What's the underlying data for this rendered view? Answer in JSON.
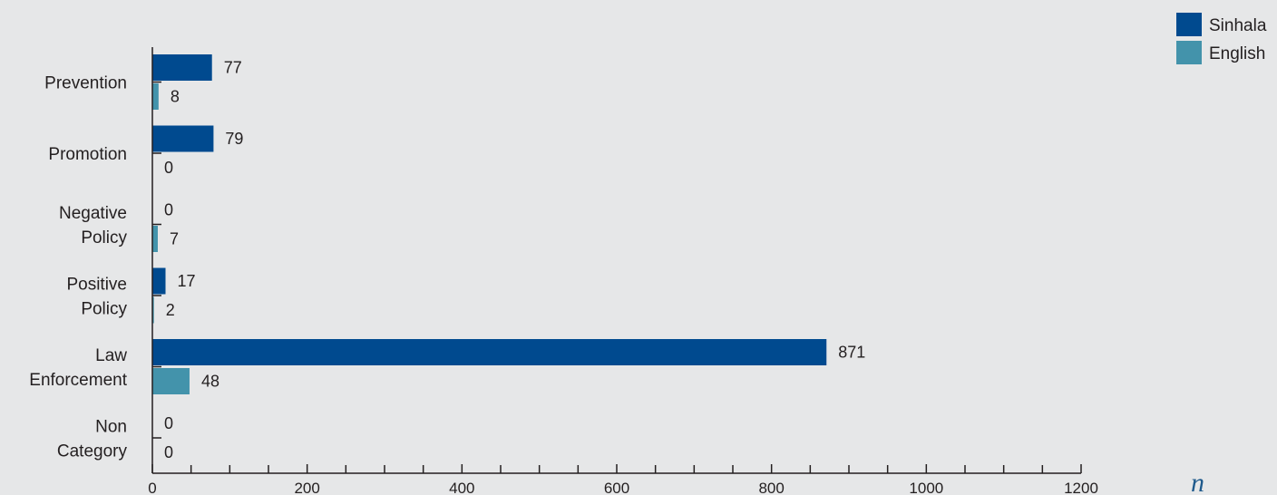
{
  "chart_data": {
    "type": "bar",
    "orientation": "horizontal",
    "categories": [
      [
        "Prevention"
      ],
      [
        "Promotion"
      ],
      [
        "Negative",
        "Policy"
      ],
      [
        "Positive",
        "Policy"
      ],
      [
        "Law",
        "Enforcement"
      ],
      [
        "Non",
        "Category"
      ]
    ],
    "series": [
      {
        "name": "Sinhala",
        "color": "#004a8f",
        "values": [
          77,
          79,
          0,
          17,
          871,
          0
        ]
      },
      {
        "name": "English",
        "color": "#4393ab",
        "values": [
          8,
          0,
          7,
          2,
          48,
          0
        ]
      }
    ],
    "x_ticks": [
      0,
      200,
      400,
      600,
      800,
      1000,
      1200
    ],
    "xlim": [
      0,
      1200
    ],
    "xlabel": "n",
    "legend_position": "top-right",
    "grid": false
  }
}
